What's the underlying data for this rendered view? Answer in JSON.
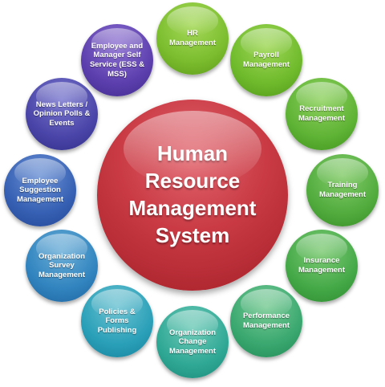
{
  "center": {
    "title": "Human Resource Management System",
    "color": "#c93a44"
  },
  "modules": [
    {
      "id": "hr",
      "label": "HR Management",
      "color": "#7bbd2e"
    },
    {
      "id": "pay",
      "label": "Payroll Management",
      "color": "#6fba2c"
    },
    {
      "id": "rec",
      "label": "Recruitment Management",
      "color": "#5fb335"
    },
    {
      "id": "train",
      "label": "Training Management",
      "color": "#52ac3e"
    },
    {
      "id": "ins",
      "label": "Insurance Management",
      "color": "#45a948"
    },
    {
      "id": "perf",
      "label": "Performance Management",
      "color": "#3aa870"
    },
    {
      "id": "org",
      "label": "Organization Change Management",
      "color": "#2fa895"
    },
    {
      "id": "pol",
      "label": "Policies & Forms Publishing",
      "color": "#2aa0b8"
    },
    {
      "id": "surv",
      "label": "Organization Survey Management",
      "color": "#3184bf"
    },
    {
      "id": "sug",
      "label": "Employee Suggestion Management",
      "color": "#3660b3"
    },
    {
      "id": "news",
      "label": "News Letters / Opinion Polls & Events",
      "color": "#4a45a8"
    },
    {
      "id": "emp",
      "label": "Employee and Manager Self Service (ESS & MSS)",
      "color": "#5c3fad"
    }
  ]
}
